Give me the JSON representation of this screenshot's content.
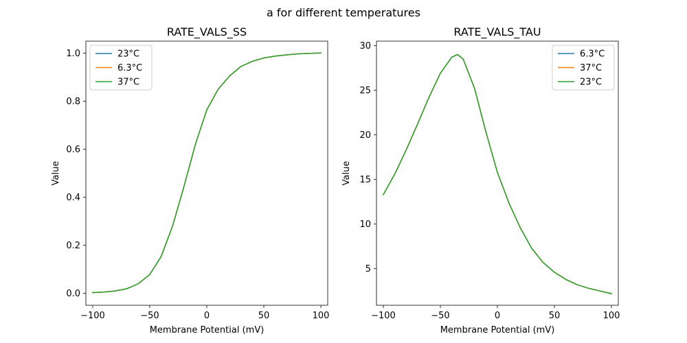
{
  "figure": {
    "suptitle": "a for different temperatures"
  },
  "chart_data": [
    {
      "type": "line",
      "title": "RATE_VALS_SS",
      "xlabel": "Membrane Potential (mV)",
      "ylabel": "Value",
      "xlim": [
        -106,
        106
      ],
      "ylim": [
        -0.05,
        1.05
      ],
      "xticks": [
        -100,
        -50,
        0,
        50,
        100
      ],
      "xtick_labels": [
        "−100",
        "−50",
        "0",
        "50",
        "100"
      ],
      "yticks": [
        0.0,
        0.2,
        0.4,
        0.6,
        0.8,
        1.0
      ],
      "ytick_labels": [
        "0.0",
        "0.2",
        "0.4",
        "0.6",
        "0.8",
        "1.0"
      ],
      "grid": false,
      "legend_position": "upper-left",
      "x": [
        -100,
        -90,
        -80,
        -70,
        -60,
        -50,
        -40,
        -30,
        -20,
        -10,
        0,
        10,
        20,
        30,
        40,
        50,
        60,
        70,
        80,
        90,
        100
      ],
      "series": [
        {
          "name": "23°C",
          "color": "#1f77b4",
          "values": [
            0.003,
            0.005,
            0.01,
            0.019,
            0.04,
            0.078,
            0.153,
            0.28,
            0.445,
            0.62,
            0.764,
            0.85,
            0.905,
            0.945,
            0.966,
            0.98,
            0.988,
            0.993,
            0.997,
            0.999,
            1.001
          ]
        },
        {
          "name": "6.3°C",
          "color": "#ff7f0e",
          "values": [
            0.003,
            0.005,
            0.01,
            0.019,
            0.04,
            0.078,
            0.153,
            0.28,
            0.445,
            0.62,
            0.764,
            0.85,
            0.905,
            0.945,
            0.966,
            0.98,
            0.988,
            0.993,
            0.997,
            0.999,
            1.001
          ]
        },
        {
          "name": "37°C",
          "color": "#2ca02c",
          "values": [
            0.003,
            0.005,
            0.01,
            0.019,
            0.04,
            0.078,
            0.153,
            0.28,
            0.445,
            0.62,
            0.764,
            0.85,
            0.905,
            0.945,
            0.966,
            0.98,
            0.988,
            0.993,
            0.997,
            0.999,
            1.001
          ]
        }
      ]
    },
    {
      "type": "line",
      "title": "RATE_VALS_TAU",
      "xlabel": "Membrane Potential (mV)",
      "ylabel": "Value",
      "xlim": [
        -106,
        106
      ],
      "ylim": [
        0.9,
        30.5
      ],
      "xticks": [
        -100,
        -50,
        0,
        50,
        100
      ],
      "xtick_labels": [
        "−100",
        "−50",
        "0",
        "50",
        "100"
      ],
      "yticks": [
        5,
        10,
        15,
        20,
        25,
        30
      ],
      "ytick_labels": [
        "5",
        "10",
        "15",
        "20",
        "25",
        "30"
      ],
      "grid": false,
      "legend_position": "upper-right",
      "x": [
        -100,
        -90,
        -80,
        -70,
        -60,
        -50,
        -40,
        -35,
        -30,
        -20,
        -10,
        0,
        10,
        20,
        30,
        40,
        50,
        60,
        70,
        80,
        90,
        100
      ],
      "series": [
        {
          "name": "6.3°C",
          "color": "#1f77b4",
          "values": [
            13.3,
            15.6,
            18.3,
            21.2,
            24.2,
            26.9,
            28.7,
            29.0,
            28.5,
            25.2,
            20.3,
            15.8,
            12.4,
            9.6,
            7.3,
            5.7,
            4.6,
            3.8,
            3.2,
            2.8,
            2.5,
            2.2
          ]
        },
        {
          "name": "37°C",
          "color": "#ff7f0e",
          "values": [
            13.3,
            15.6,
            18.3,
            21.2,
            24.2,
            26.9,
            28.7,
            29.0,
            28.5,
            25.2,
            20.3,
            15.8,
            12.4,
            9.6,
            7.3,
            5.7,
            4.6,
            3.8,
            3.2,
            2.8,
            2.5,
            2.2
          ]
        },
        {
          "name": "23°C",
          "color": "#2ca02c",
          "values": [
            13.3,
            15.6,
            18.3,
            21.2,
            24.2,
            26.9,
            28.7,
            29.0,
            28.5,
            25.2,
            20.3,
            15.8,
            12.4,
            9.6,
            7.3,
            5.7,
            4.6,
            3.8,
            3.2,
            2.8,
            2.5,
            2.2
          ]
        }
      ]
    }
  ]
}
